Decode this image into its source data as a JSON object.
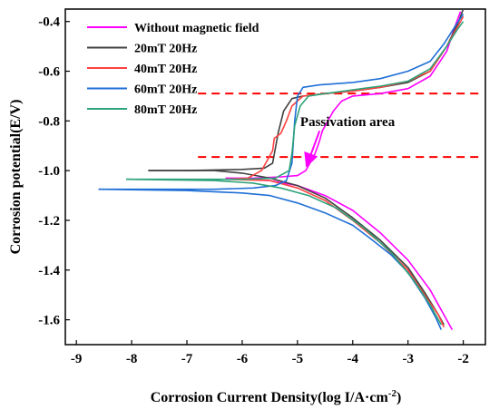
{
  "chart_data": {
    "type": "line",
    "title": "",
    "xlabel": "Corrosion Current Density(log I/A·cm",
    "xlabel_sup": "-2",
    "xlabel_tail": ")",
    "ylabel": "Corrosion potential(E/V)",
    "xlim": [
      -9.2,
      -1.6
    ],
    "ylim": [
      -1.7,
      -0.35
    ],
    "x_ticks": [
      -9,
      -8,
      -7,
      -6,
      -5,
      -4,
      -3,
      -2
    ],
    "y_ticks": [
      -0.4,
      -0.6,
      -0.8,
      -1.0,
      -1.2,
      -1.4,
      -1.6
    ],
    "x_tick_labels": [
      "-9",
      "-8",
      "-7",
      "-6",
      "-5",
      "-4",
      "-3",
      "-2"
    ],
    "y_tick_labels": [
      "-0.4",
      "-0.6",
      "-0.8",
      "-1.0",
      "-1.2",
      "-1.4",
      "-1.6"
    ],
    "grid": false,
    "legend_position": "top-left",
    "series": [
      {
        "name": "Without magnetic field",
        "color": "#ff00ff",
        "anodic": [
          [
            -6.3,
            -1.03
          ],
          [
            -5.8,
            -1.03
          ],
          [
            -5.3,
            -1.025
          ],
          [
            -5.0,
            -1.02
          ],
          [
            -4.85,
            -1.0
          ],
          [
            -4.75,
            -0.96
          ],
          [
            -4.68,
            -0.93
          ],
          [
            -4.6,
            -0.88
          ],
          [
            -4.55,
            -0.84
          ],
          [
            -4.45,
            -0.8
          ],
          [
            -4.35,
            -0.76
          ],
          [
            -4.2,
            -0.72
          ],
          [
            -4.0,
            -0.7
          ],
          [
            -3.5,
            -0.69
          ],
          [
            -3.0,
            -0.67
          ],
          [
            -2.6,
            -0.62
          ],
          [
            -2.3,
            -0.52
          ],
          [
            -2.15,
            -0.42
          ],
          [
            -2.05,
            -0.36
          ]
        ],
        "cathodic": [
          [
            -6.3,
            -1.03
          ],
          [
            -5.5,
            -1.04
          ],
          [
            -5.0,
            -1.06
          ],
          [
            -4.5,
            -1.1
          ],
          [
            -4.0,
            -1.16
          ],
          [
            -3.5,
            -1.25
          ],
          [
            -3.0,
            -1.36
          ],
          [
            -2.6,
            -1.48
          ],
          [
            -2.35,
            -1.58
          ],
          [
            -2.2,
            -1.64
          ]
        ]
      },
      {
        "name": "20mT 20Hz",
        "color": "#404040",
        "anodic": [
          [
            -7.7,
            -1.0
          ],
          [
            -7.0,
            -1.0
          ],
          [
            -6.0,
            -0.995
          ],
          [
            -5.6,
            -0.99
          ],
          [
            -5.45,
            -0.97
          ],
          [
            -5.35,
            -0.85
          ],
          [
            -5.25,
            -0.76
          ],
          [
            -5.1,
            -0.71
          ],
          [
            -4.9,
            -0.7
          ],
          [
            -4.5,
            -0.69
          ],
          [
            -4.0,
            -0.68
          ],
          [
            -3.5,
            -0.665
          ],
          [
            -3.0,
            -0.645
          ],
          [
            -2.6,
            -0.6
          ],
          [
            -2.3,
            -0.5
          ],
          [
            -2.1,
            -0.41
          ],
          [
            -2.0,
            -0.35
          ]
        ],
        "cathodic": [
          [
            -7.7,
            -1.0
          ],
          [
            -6.5,
            -1.0
          ],
          [
            -6.0,
            -1.01
          ],
          [
            -5.5,
            -1.03
          ],
          [
            -5.0,
            -1.06
          ],
          [
            -4.5,
            -1.11
          ],
          [
            -4.0,
            -1.19
          ],
          [
            -3.5,
            -1.28
          ],
          [
            -3.0,
            -1.39
          ],
          [
            -2.7,
            -1.49
          ],
          [
            -2.45,
            -1.58
          ],
          [
            -2.35,
            -1.62
          ]
        ]
      },
      {
        "name": "40mT 20Hz",
        "color": "#ff4040",
        "anodic": [
          [
            -6.3,
            -1.035
          ],
          [
            -5.9,
            -1.03
          ],
          [
            -5.65,
            -1.0
          ],
          [
            -5.55,
            -0.96
          ],
          [
            -5.45,
            -0.92
          ],
          [
            -5.42,
            -0.87
          ],
          [
            -5.3,
            -0.85
          ],
          [
            -5.2,
            -0.8
          ],
          [
            -5.1,
            -0.74
          ],
          [
            -4.9,
            -0.7
          ],
          [
            -4.5,
            -0.69
          ],
          [
            -4.0,
            -0.68
          ],
          [
            -3.5,
            -0.665
          ],
          [
            -3.0,
            -0.64
          ],
          [
            -2.6,
            -0.6
          ],
          [
            -2.3,
            -0.5
          ],
          [
            -2.1,
            -0.42
          ],
          [
            -2.0,
            -0.38
          ]
        ],
        "cathodic": [
          [
            -6.3,
            -1.035
          ],
          [
            -5.5,
            -1.04
          ],
          [
            -5.0,
            -1.07
          ],
          [
            -4.5,
            -1.12
          ],
          [
            -4.0,
            -1.2
          ],
          [
            -3.5,
            -1.29
          ],
          [
            -3.0,
            -1.4
          ],
          [
            -2.7,
            -1.5
          ],
          [
            -2.45,
            -1.58
          ],
          [
            -2.35,
            -1.63
          ]
        ]
      },
      {
        "name": "60mT 20Hz",
        "color": "#1f6fd6",
        "anodic": [
          [
            -8.6,
            -1.075
          ],
          [
            -7.5,
            -1.075
          ],
          [
            -6.5,
            -1.075
          ],
          [
            -5.8,
            -1.07
          ],
          [
            -5.4,
            -1.06
          ],
          [
            -5.2,
            -1.04
          ],
          [
            -5.1,
            -0.97
          ],
          [
            -5.05,
            -0.8
          ],
          [
            -5.0,
            -0.7
          ],
          [
            -4.9,
            -0.665
          ],
          [
            -4.6,
            -0.655
          ],
          [
            -4.0,
            -0.645
          ],
          [
            -3.5,
            -0.63
          ],
          [
            -3.0,
            -0.6
          ],
          [
            -2.6,
            -0.56
          ],
          [
            -2.35,
            -0.49
          ],
          [
            -2.15,
            -0.42
          ],
          [
            -2.0,
            -0.37
          ]
        ],
        "cathodic": [
          [
            -8.6,
            -1.075
          ],
          [
            -7.0,
            -1.08
          ],
          [
            -6.0,
            -1.09
          ],
          [
            -5.5,
            -1.1
          ],
          [
            -5.0,
            -1.13
          ],
          [
            -4.5,
            -1.17
          ],
          [
            -4.0,
            -1.22
          ],
          [
            -3.7,
            -1.27
          ],
          [
            -3.3,
            -1.34
          ],
          [
            -3.0,
            -1.41
          ],
          [
            -2.7,
            -1.51
          ],
          [
            -2.5,
            -1.59
          ],
          [
            -2.4,
            -1.64
          ]
        ]
      },
      {
        "name": "80mT 20Hz",
        "color": "#2fa37a",
        "anodic": [
          [
            -8.1,
            -1.035
          ],
          [
            -7.0,
            -1.035
          ],
          [
            -6.0,
            -1.035
          ],
          [
            -5.4,
            -1.03
          ],
          [
            -5.15,
            -1.0
          ],
          [
            -5.1,
            -0.93
          ],
          [
            -5.05,
            -0.82
          ],
          [
            -4.95,
            -0.74
          ],
          [
            -4.8,
            -0.7
          ],
          [
            -4.5,
            -0.69
          ],
          [
            -4.0,
            -0.675
          ],
          [
            -3.5,
            -0.66
          ],
          [
            -3.0,
            -0.64
          ],
          [
            -2.6,
            -0.59
          ],
          [
            -2.3,
            -0.5
          ],
          [
            -2.1,
            -0.43
          ],
          [
            -2.0,
            -0.4
          ]
        ],
        "cathodic": [
          [
            -8.1,
            -1.035
          ],
          [
            -6.5,
            -1.04
          ],
          [
            -5.8,
            -1.05
          ],
          [
            -5.3,
            -1.07
          ],
          [
            -4.8,
            -1.1
          ],
          [
            -4.3,
            -1.15
          ],
          [
            -3.8,
            -1.23
          ],
          [
            -3.3,
            -1.33
          ],
          [
            -2.9,
            -1.44
          ],
          [
            -2.6,
            -1.54
          ],
          [
            -2.4,
            -1.62
          ]
        ]
      }
    ],
    "reference_lines": [
      {
        "y": -0.69,
        "x_from": -6.8,
        "x_to": -1.7,
        "color": "#ff0000",
        "style": "dashed"
      },
      {
        "y": -0.945,
        "x_from": -6.8,
        "x_to": -1.7,
        "color": "#ff0000",
        "style": "dashed"
      }
    ],
    "annotations": [
      {
        "text": "Passivation area",
        "x": -4.95,
        "y": -0.82
      },
      {
        "text": "",
        "arrow_from": [
          -4.6,
          -0.84
        ],
        "arrow_to": [
          -4.8,
          -0.96
        ]
      }
    ]
  }
}
